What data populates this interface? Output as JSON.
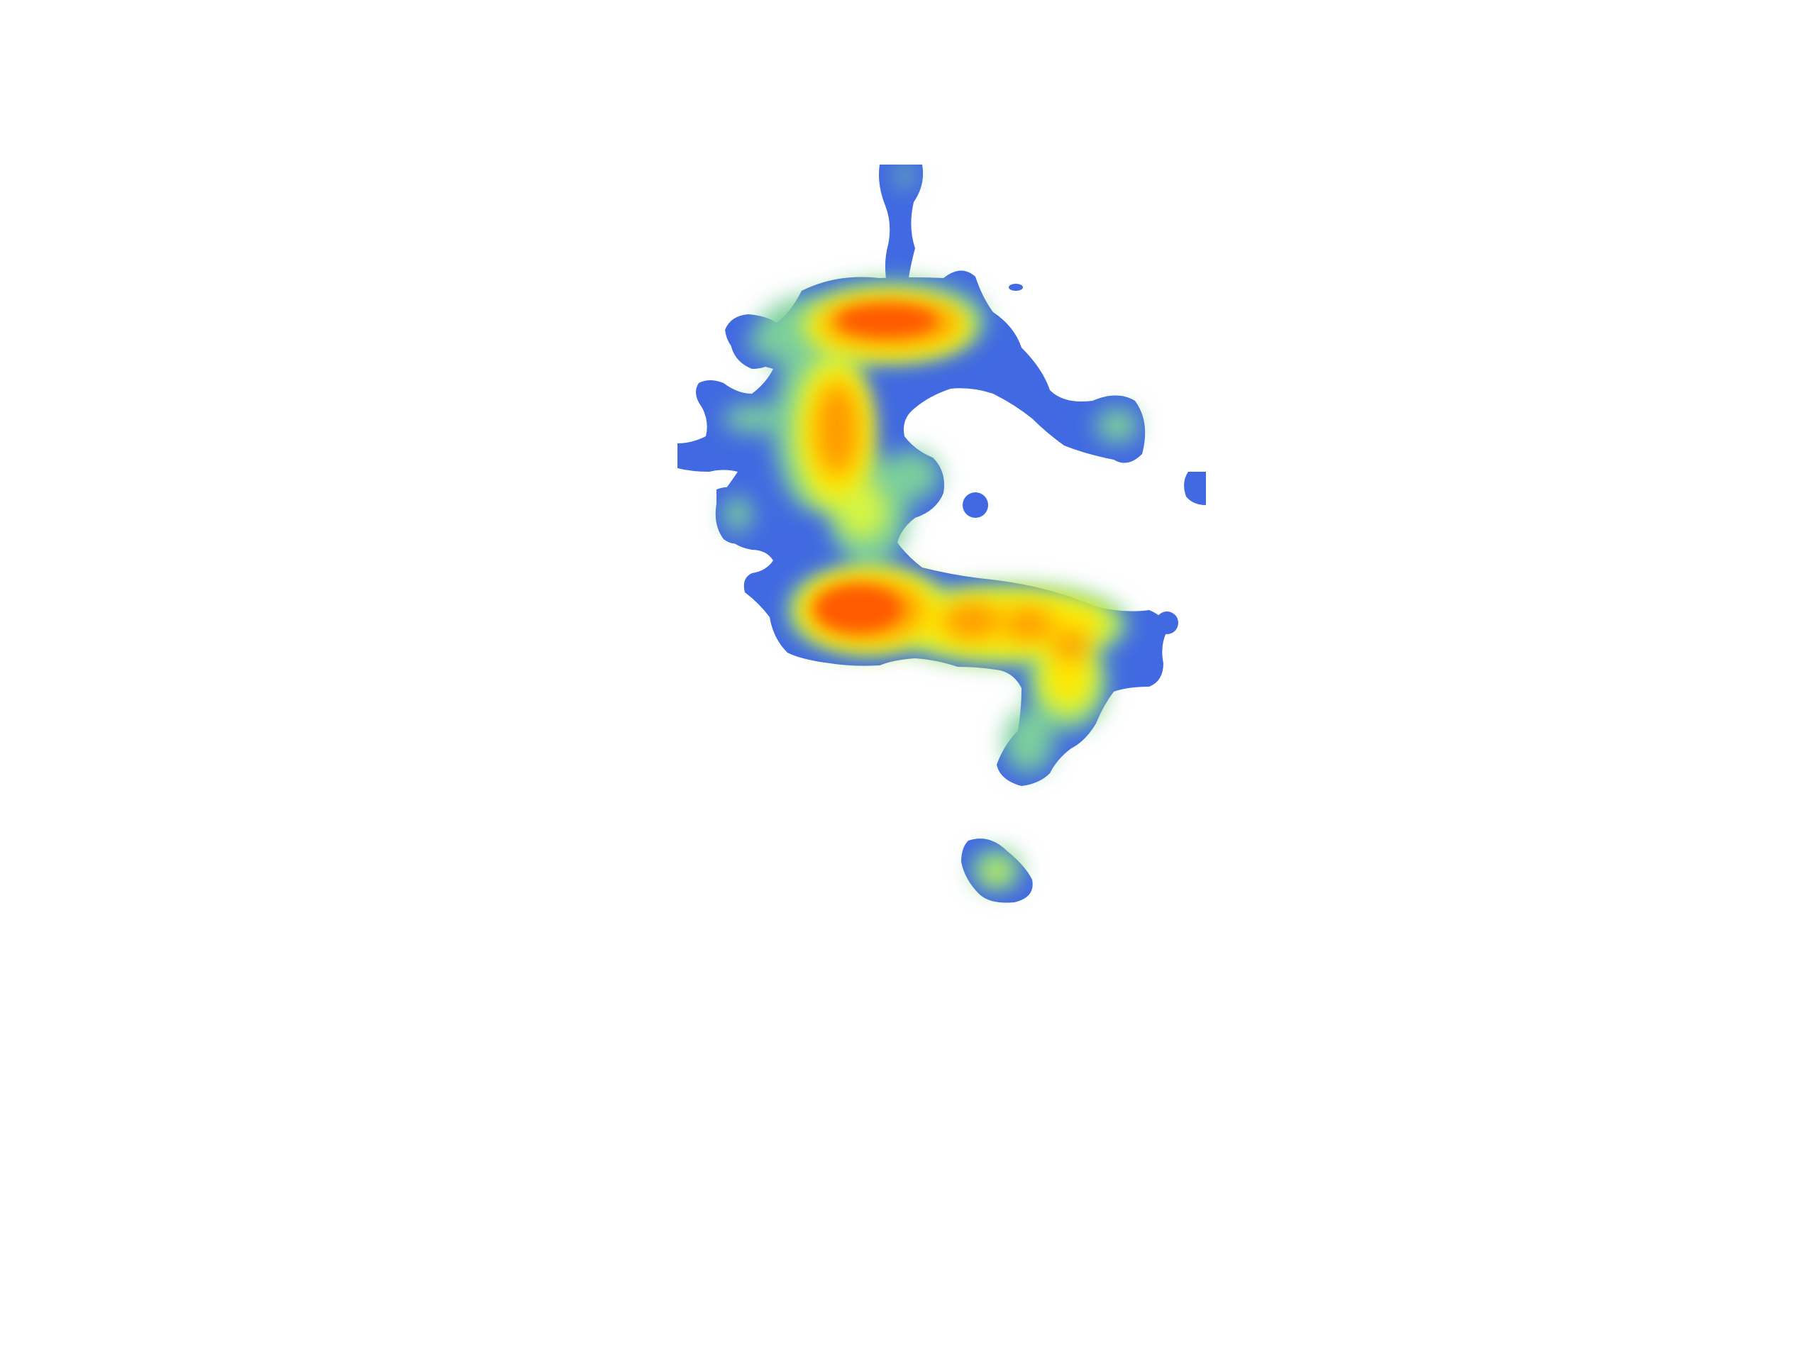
{
  "map": {
    "type": "heatmap",
    "background": "#ffffff",
    "colors": {
      "low": "#4169e1",
      "low_mid": "#7ccf9c",
      "mid": "#d4f542",
      "mid_high": "#ffe600",
      "high": "#ff9a00",
      "peak": "#ff5a00"
    },
    "legend": null,
    "labels": []
  }
}
